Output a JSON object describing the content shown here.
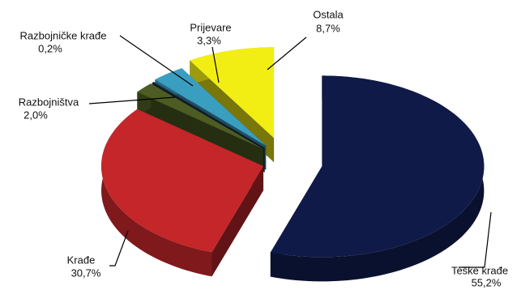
{
  "chart_data": {
    "type": "pie",
    "categories": [
      "Teške krađe",
      "Krađe",
      "Razbojništva",
      "Razbojničke krađe",
      "Prijevare",
      "Ostala"
    ],
    "values": [
      55.2,
      30.7,
      2.0,
      0.2,
      3.3,
      8.7
    ],
    "value_labels": [
      "55,2%",
      "30,7%",
      "2,0%",
      "0,2%",
      "3,3%",
      "8,7%"
    ],
    "colors": [
      "#101a48",
      "#c4262a",
      "#4c5c22",
      "#1c2c44",
      "#3a9ec0",
      "#f2ee14"
    ]
  }
}
